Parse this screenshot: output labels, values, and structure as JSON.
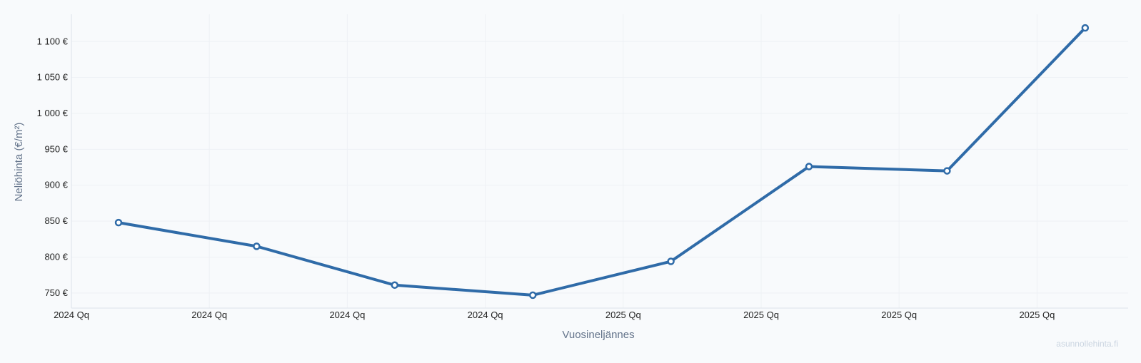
{
  "chart_data": {
    "type": "line",
    "title": "",
    "xlabel": "Vuosineljännes",
    "ylabel": "Neliöhinta (€/m²)",
    "categories": [
      "2024 Qq",
      "2024 Qq",
      "2024 Qq",
      "2024 Qq",
      "2025 Qq",
      "2025 Qq",
      "2025 Qq",
      "2025 Qq"
    ],
    "series": [
      {
        "values": [
          848,
          815,
          761,
          747,
          794,
          926,
          920,
          1119
        ]
      }
    ],
    "y_ticks": [
      {
        "value": 750,
        "label": "750 €"
      },
      {
        "value": 800,
        "label": "800 €"
      },
      {
        "value": 850,
        "label": "850 €"
      },
      {
        "value": 900,
        "label": "900 €"
      },
      {
        "value": 950,
        "label": "950 €"
      },
      {
        "value": 1000,
        "label": "1 000 €"
      },
      {
        "value": 1050,
        "label": "1 050 €"
      },
      {
        "value": 1100,
        "label": "1 100 €"
      }
    ],
    "ylim": [
      729,
      1138
    ],
    "grid": true,
    "line_color": "#2f6ba8",
    "legend": "none"
  },
  "watermark": "asunnollehinta.fi"
}
